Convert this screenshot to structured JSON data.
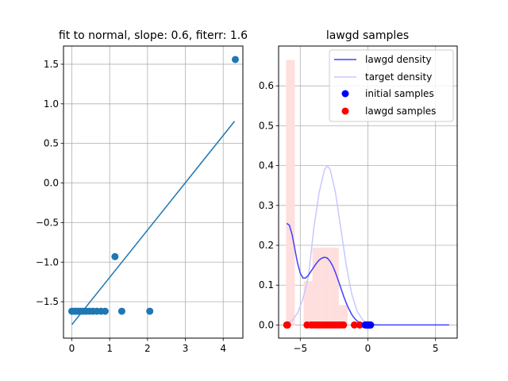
{
  "chart_data": [
    {
      "type": "scatter",
      "title": "fit to normal, slope: 0.6, fiterr: 1.6",
      "xlim": [
        -0.22,
        4.52
      ],
      "ylim": [
        -1.96,
        1.73
      ],
      "grid": true,
      "xticks": [
        0,
        1,
        2,
        3,
        4
      ],
      "yticks": [
        -1.5,
        -1.0,
        -0.5,
        0.0,
        0.5,
        1.0,
        1.5
      ],
      "xtick_labels": [
        "0",
        "1",
        "2",
        "3",
        "4"
      ],
      "ytick_labels": [
        "−1.5",
        "−1.0",
        "−0.5",
        "0.0",
        "0.5",
        "1.0",
        "1.5"
      ],
      "colors": {
        "points": "#1f77b4",
        "fit_line": "#1f77b4"
      },
      "points": {
        "x": [
          0.0,
          0.06,
          0.11,
          0.17,
          0.23,
          0.3,
          0.38,
          0.47,
          0.56,
          0.66,
          0.77,
          0.88,
          1.14,
          1.32,
          2.06,
          4.32
        ],
        "y": [
          -1.62,
          -1.62,
          -1.62,
          -1.62,
          -1.62,
          -1.62,
          -1.62,
          -1.62,
          -1.62,
          -1.62,
          -1.62,
          -1.62,
          -0.93,
          -1.62,
          -1.62,
          1.56
        ]
      },
      "fit_line": {
        "x": [
          0.0,
          4.3
        ],
        "y": [
          -1.79,
          0.78
        ]
      }
    },
    {
      "type": "line",
      "title": "lawgd samples",
      "xlim": [
        -6.6,
        6.6
      ],
      "ylim": [
        -0.033,
        0.7
      ],
      "grid": true,
      "xticks": [
        -5,
        0,
        5
      ],
      "yticks": [
        0.0,
        0.1,
        0.2,
        0.3,
        0.4,
        0.5,
        0.6
      ],
      "xtick_labels": [
        "−5",
        "0",
        "5"
      ],
      "ytick_labels": [
        "0.0",
        "0.1",
        "0.2",
        "0.3",
        "0.4",
        "0.5",
        "0.6"
      ],
      "legend_position": "top-right",
      "legend": [
        {
          "label": "lawgd density",
          "kind": "line",
          "color": "#4040ff"
        },
        {
          "label": "target density",
          "kind": "line",
          "color": "#c8c8ff"
        },
        {
          "label": "initial samples",
          "kind": "marker",
          "color": "#0000ff"
        },
        {
          "label": "lawgd samples",
          "kind": "marker",
          "color": "#ff0000"
        }
      ],
      "histogram": {
        "color": "#ffdede",
        "bins": [
          {
            "x0": -6.05,
            "x1": -5.4,
            "h": 0.665
          },
          {
            "x0": -5.4,
            "x1": -4.75,
            "h": 0.0
          },
          {
            "x0": -4.75,
            "x1": -4.1,
            "h": 0.11
          },
          {
            "x0": -4.1,
            "x1": -3.45,
            "h": 0.194
          },
          {
            "x0": -3.45,
            "x1": -2.8,
            "h": 0.194
          },
          {
            "x0": -2.8,
            "x1": -2.15,
            "h": 0.194
          },
          {
            "x0": -2.15,
            "x1": -1.5,
            "h": 0.05
          }
        ]
      },
      "lawgd_density": {
        "x": [
          -6.0,
          -5.8,
          -5.6,
          -5.4,
          -5.2,
          -5.0,
          -4.8,
          -4.6,
          -4.4,
          -4.2,
          -4.0,
          -3.8,
          -3.6,
          -3.4,
          -3.2,
          -3.0,
          -2.8,
          -2.6,
          -2.4,
          -2.2,
          -2.0,
          -1.8,
          -1.6,
          -1.4,
          -1.2,
          -1.0,
          -0.8,
          -0.6,
          -0.4,
          -0.2,
          0.0,
          0.5,
          1.0,
          2.0,
          3.0,
          4.0,
          5.0,
          6.0
        ],
        "y": [
          0.255,
          0.25,
          0.227,
          0.19,
          0.155,
          0.13,
          0.118,
          0.118,
          0.125,
          0.135,
          0.145,
          0.155,
          0.163,
          0.168,
          0.17,
          0.168,
          0.16,
          0.148,
          0.132,
          0.113,
          0.093,
          0.073,
          0.055,
          0.04,
          0.027,
          0.017,
          0.01,
          0.006,
          0.003,
          0.002,
          0.001,
          0.0005,
          0.0,
          0.0,
          0.0,
          0.0,
          0.0,
          0.0
        ]
      },
      "target_density": {
        "x": [
          -6.0,
          -5.6,
          -5.2,
          -4.8,
          -4.4,
          -4.0,
          -3.6,
          -3.2,
          -3.0,
          -2.8,
          -2.4,
          -2.0,
          -1.6,
          -1.2,
          -0.8,
          -0.4,
          0.0,
          0.5
        ],
        "y": [
          0.004,
          0.011,
          0.03,
          0.066,
          0.12,
          0.242,
          0.333,
          0.391,
          0.399,
          0.391,
          0.333,
          0.242,
          0.15,
          0.079,
          0.035,
          0.013,
          0.004,
          0.001
        ]
      },
      "initial_samples": {
        "x": [
          -0.2,
          -0.12,
          -0.05,
          0.0,
          0.05,
          0.1,
          0.15,
          0.2
        ],
        "y": [
          0,
          0,
          0,
          0,
          0,
          0,
          0,
          0
        ]
      },
      "lawgd_samples": {
        "x": [
          -6.0,
          -5.97,
          -5.94,
          -4.5,
          -4.2,
          -4.0,
          -3.8,
          -3.6,
          -3.4,
          -3.2,
          -3.0,
          -2.8,
          -2.6,
          -2.4,
          -2.2,
          -2.0,
          -1.8,
          -1.0,
          -0.6
        ],
        "y": [
          0,
          0,
          0,
          0,
          0,
          0,
          0,
          0,
          0,
          0,
          0,
          0,
          0,
          0,
          0,
          0,
          0,
          0,
          0
        ]
      }
    }
  ]
}
